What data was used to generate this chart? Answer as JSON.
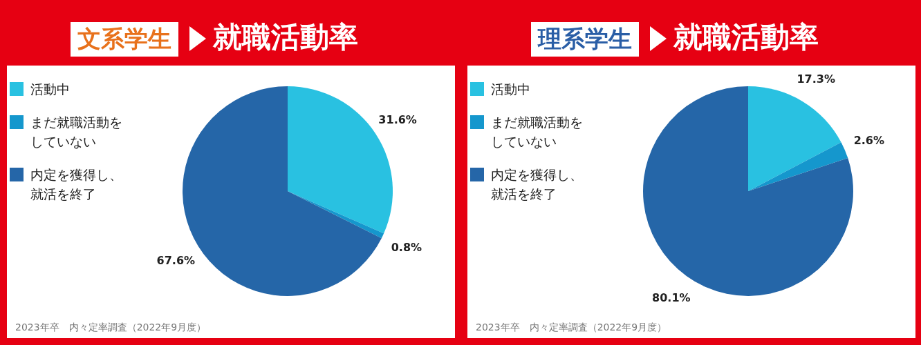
{
  "chart_data": [
    {
      "type": "pie",
      "title": "文系学生",
      "subtitle": "就職活動率",
      "categories": [
        "活動中",
        "まだ就職活動をしていない",
        "内定を獲得し、就活を終了"
      ],
      "values": [
        31.6,
        0.8,
        67.6
      ],
      "value_labels": [
        "31.6%",
        "0.8%",
        "67.6%"
      ],
      "colors": [
        "#29c1e1",
        "#1597cd",
        "#2566a8"
      ],
      "legend": "top left",
      "annotations": [
        "2023年卒　内々定率調査（2022年9月度）"
      ]
    },
    {
      "type": "pie",
      "title": "理系学生",
      "subtitle": "就職活動率",
      "categories": [
        "活動中",
        "まだ就職活動をしていない",
        "内定を獲得し、就活を終了"
      ],
      "values": [
        17.3,
        2.6,
        80.1
      ],
      "value_labels": [
        "17.3%",
        "2.6%",
        "80.1%"
      ],
      "colors": [
        "#29c1e1",
        "#1597cd",
        "#2566a8"
      ],
      "legend": "top left",
      "annotations": [
        "2023年卒　内々定率調査（2022年9月度）"
      ]
    }
  ]
}
